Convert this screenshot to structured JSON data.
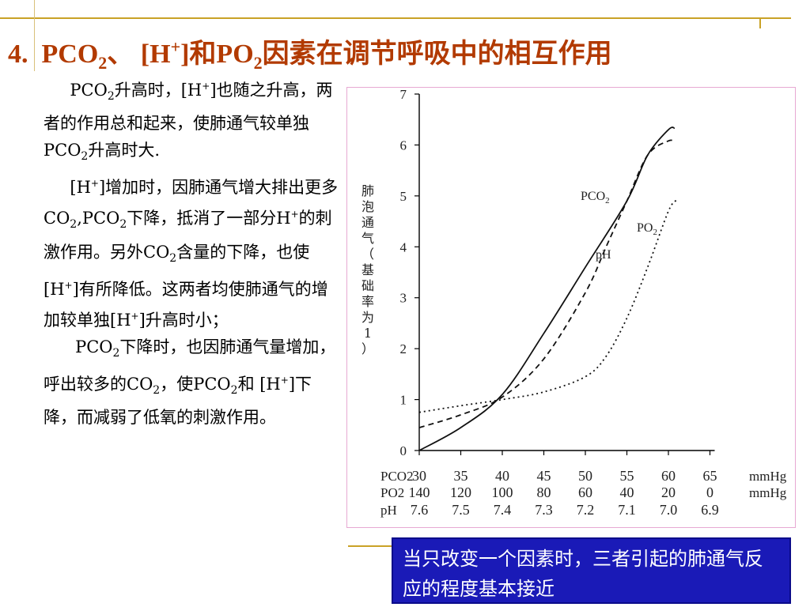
{
  "title": {
    "num": "4.",
    "p1": "PCO",
    "sub1": "2",
    "p2": "、 [H",
    "sup1": "+",
    "p3": "]和PO",
    "sub2": "2",
    "p4": "因素在调节呼吸中的相互作用"
  },
  "para1": {
    "a": "PCO",
    "b": "2",
    "c": "升高时，[H",
    "d": "+",
    "e": "]也随之升高，两者的作用总和起来，使肺通气较单独PCO",
    "f": "2",
    "g": "升高时大."
  },
  "para2": {
    "a": "[H",
    "b": "+",
    "c": "]增加时，因肺通气增大排出更多CO",
    "d": "2",
    "e": ",PCO",
    "f": "2",
    "g": "下降，抵消了一部分H",
    "h": "+",
    "i": "的刺激作用。另外CO",
    "j": "2",
    "k": "含量的下降，也使[H",
    "l": "+",
    "m": "]有所降低。这两者均使肺通气的增加较单独[H",
    "n": "+",
    "o": "]升高时小；"
  },
  "para3": {
    "a": "PCO",
    "b": "2",
    "c": "下降时，也因肺通气量增加，呼出较多的CO",
    "d": "2",
    "e": "，使PCO",
    "f": "2",
    "g": "和 [H",
    "h": "+",
    "i": "]下降，而减弱了低氧的刺激作用。"
  },
  "note": "当只改变一个因素时，三者引起的肺通气反应的程度基本接近",
  "chart_data": {
    "type": "line",
    "ylabel": "肺泡通气（基础率为1）",
    "ylim": [
      0,
      7
    ],
    "yticks": [
      0,
      1,
      2,
      3,
      4,
      5,
      6,
      7
    ],
    "x_rows": [
      {
        "label": "PCO2",
        "unit": "mmHg",
        "values": [
          "30",
          "35",
          "40",
          "45",
          "50",
          "55",
          "60",
          "65"
        ]
      },
      {
        "label": "PO2",
        "unit": "mmHg",
        "values": [
          "140",
          "120",
          "100",
          "80",
          "60",
          "40",
          "20",
          "0"
        ]
      },
      {
        "label": "pH",
        "unit": "",
        "values": [
          "7.6",
          "7.5",
          "7.4",
          "7.3",
          "7.2",
          "7.1",
          "7.0",
          "6.9"
        ]
      }
    ],
    "series": [
      {
        "name": "PCO2",
        "style": "solid",
        "x": [
          0,
          1,
          2,
          3,
          4,
          5,
          5.5,
          6,
          6.15
        ],
        "y": [
          0,
          0.45,
          1.1,
          2.3,
          3.6,
          4.9,
          5.8,
          6.3,
          6.33
        ]
      },
      {
        "name": "pH",
        "style": "dashed",
        "x": [
          0,
          1,
          2,
          3,
          4,
          4.5,
          5,
          5.5,
          6,
          6.15
        ],
        "y": [
          0.45,
          0.7,
          1.05,
          1.8,
          3.1,
          4.0,
          4.9,
          5.8,
          6.08,
          6.05
        ]
      },
      {
        "name": "PO2",
        "style": "dotted",
        "x": [
          0,
          1,
          2,
          3,
          4,
          4.5,
          5,
          5.5,
          6,
          6.2
        ],
        "y": [
          0.75,
          0.88,
          1.0,
          1.15,
          1.45,
          1.85,
          2.6,
          3.6,
          4.7,
          4.92
        ]
      }
    ]
  }
}
